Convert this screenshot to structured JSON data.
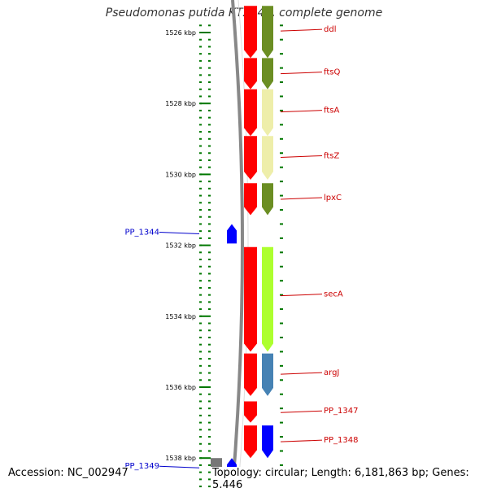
{
  "title": "Pseudomonas putida KT2440, complete genome",
  "footer": {
    "accession": "Accession: NC_002947",
    "topology": "Topology: circular; Length: 6,181,863 bp; Genes: 5,446"
  },
  "axis": {
    "ticks": [
      {
        "kbp": 1526,
        "label": "1526 kbp"
      },
      {
        "kbp": 1528,
        "label": "1528 kbp"
      },
      {
        "kbp": 1530,
        "label": "1530 kbp"
      },
      {
        "kbp": 1532,
        "label": "1532 kbp"
      },
      {
        "kbp": 1534,
        "label": "1534 kbp"
      },
      {
        "kbp": 1536,
        "label": "1536 kbp"
      },
      {
        "kbp": 1538,
        "label": "1538 kbp"
      }
    ]
  },
  "colors": {
    "backbone": "#888888",
    "tick": "#007700",
    "forward_label": "#cc0000",
    "reverse_label": "#0000cc",
    "cds_forward": "#ff0000",
    "cds_reverse": "#0000ff",
    "rrna_gray": "#777777"
  },
  "genes": [
    {
      "name": "ddl",
      "strand": "+",
      "start_kbp": 1525.25,
      "end_kbp": 1526.72,
      "cog_color": "#6b8e23"
    },
    {
      "name": "ftsQ",
      "strand": "+",
      "start_kbp": 1526.72,
      "end_kbp": 1527.6,
      "cog_color": "#6b8e23"
    },
    {
      "name": "ftsA",
      "strand": "+",
      "start_kbp": 1527.6,
      "end_kbp": 1528.92,
      "cog_color": "#eeeeaa"
    },
    {
      "name": "ftsZ",
      "strand": "+",
      "start_kbp": 1528.92,
      "end_kbp": 1530.15,
      "cog_color": "#eeeeaa"
    },
    {
      "name": "lpxC",
      "strand": "+",
      "start_kbp": 1530.25,
      "end_kbp": 1531.15,
      "cog_color": "#6b8e23"
    },
    {
      "name": "PP_1344",
      "strand": "-",
      "start_kbp": 1531.4,
      "end_kbp": 1531.95,
      "cog_color": null
    },
    {
      "name": "secA",
      "strand": "+",
      "start_kbp": 1532.05,
      "end_kbp": 1535.0,
      "cog_color": "#adff2f"
    },
    {
      "name": "argJ",
      "strand": "+",
      "start_kbp": 1535.05,
      "end_kbp": 1536.25,
      "cog_color": "#4682b4"
    },
    {
      "name": "PP_1347",
      "strand": "+",
      "start_kbp": 1536.4,
      "end_kbp": 1537.0,
      "cog_color": null
    },
    {
      "name": "PP_1348",
      "strand": "+",
      "start_kbp": 1537.08,
      "end_kbp": 1538.0,
      "cog_color": "#0000ff"
    },
    {
      "name": "PP_1349",
      "strand": "-",
      "start_kbp": 1538.0,
      "end_kbp": 1538.9,
      "cog_color": null
    }
  ]
}
